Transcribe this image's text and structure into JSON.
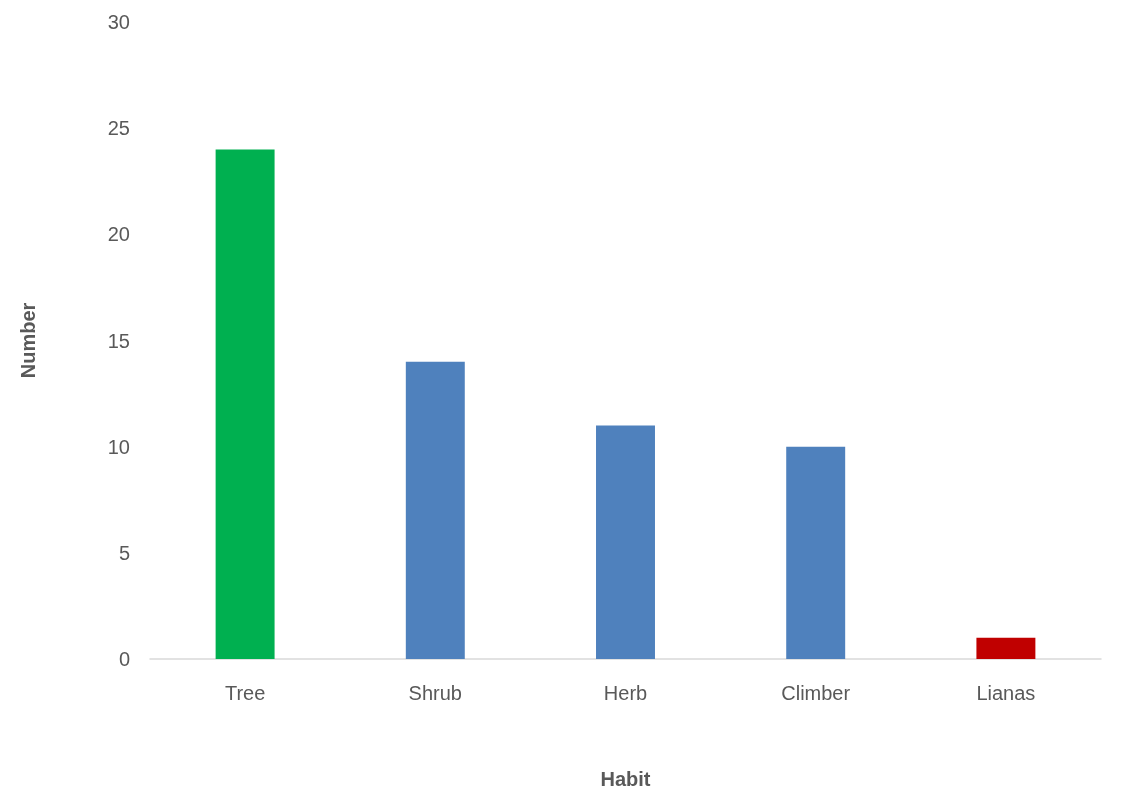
{
  "chart_data": {
    "type": "bar",
    "xlabel": "Habit",
    "ylabel": "Number",
    "categories": [
      "Tree",
      "Shrub",
      "Herb",
      "Climber",
      "Lianas"
    ],
    "values": [
      24,
      14,
      11,
      10,
      1
    ],
    "colors": [
      "#00b050",
      "#4f81bd",
      "#4f81bd",
      "#4f81bd",
      "#c00000"
    ],
    "ylim": [
      0,
      30
    ],
    "yticks": [
      0,
      5,
      10,
      15,
      20,
      25,
      30
    ],
    "grid": false
  }
}
